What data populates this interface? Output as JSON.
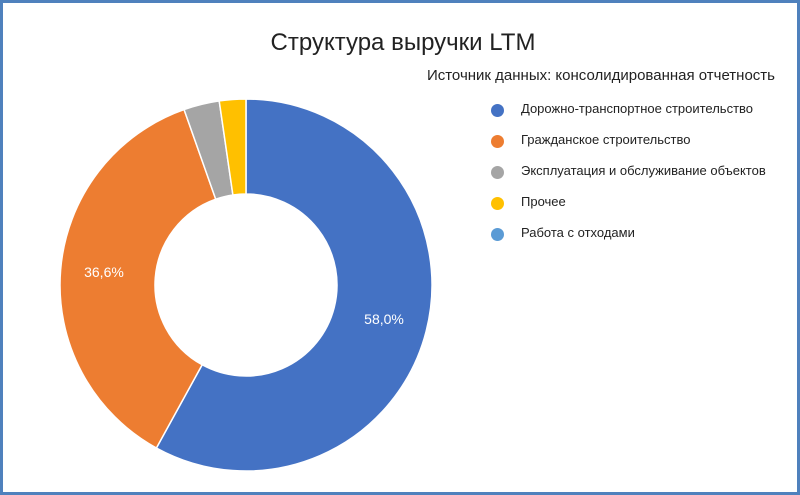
{
  "chart_data": {
    "type": "pie",
    "variant": "donut",
    "title": "Структура выручки LTM",
    "subtitle": "Источник данных: консолидированная отчетность",
    "legend_position": "right",
    "slices": [
      {
        "name": "Дорожно-транспортное строительство",
        "value": 58.0,
        "label": "58,0%",
        "color": "#4472c4"
      },
      {
        "name": "Гражданское строительство",
        "value": 36.6,
        "label": "36,6%",
        "color": "#ed7d31"
      },
      {
        "name": "Эксплуатация и обслуживание объектов",
        "value": 3.1,
        "label": "",
        "color": "#a5a5a5"
      },
      {
        "name": "Прочее",
        "value": 2.3,
        "label": "",
        "color": "#ffc000"
      },
      {
        "name": "Работа с отходами",
        "value": 0.0,
        "label": "",
        "color": "#5b9bd5"
      }
    ]
  }
}
